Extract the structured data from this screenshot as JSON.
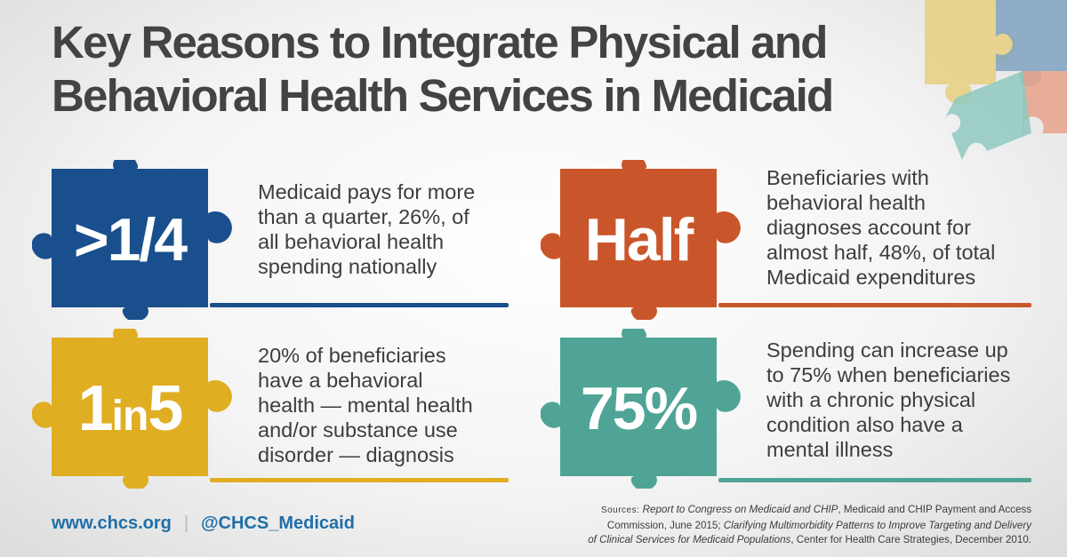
{
  "title": {
    "line1": "Key Reasons to Integrate Physical and",
    "line2": "Behavioral Health Services in Medicaid"
  },
  "colors": {
    "blue": "#1a4f8d",
    "orange": "#c9562a",
    "gold": "#e0ae22",
    "teal": "#4fa496"
  },
  "facts": [
    {
      "stat": ">1/4",
      "color": "#1a4f8d",
      "text": [
        "Medicaid pays for more",
        "than a quarter, 26%, of",
        "all behavioral health",
        "spending nationally"
      ]
    },
    {
      "stat": "Half",
      "color": "#c9562a",
      "text": [
        "Beneficiaries with",
        "behavioral health",
        "diagnoses account for",
        "almost half, 48%, of total",
        "Medicaid expenditures"
      ]
    },
    {
      "stat_pre": "1",
      "stat_mid": "in",
      "stat_post": "5",
      "color": "#e0ae22",
      "text": [
        "20% of beneficiaries",
        "have a behavioral",
        "health — mental health",
        "and/or substance use",
        "disorder — diagnosis"
      ]
    },
    {
      "stat": "75%",
      "color": "#4fa496",
      "text": [
        "Spending can increase up",
        "to 75% when beneficiaries",
        "with a chronic physical",
        "condition also have a",
        "mental illness"
      ]
    }
  ],
  "footer": {
    "website": "www.chcs.org",
    "separator": "|",
    "handle": "@CHCS_Medicaid"
  },
  "sources": {
    "label": "Sources:",
    "s1_title": "Report to Congress on Medicaid and CHIP",
    "s1_rest_a": ", Medicaid and CHIP Payment and Access",
    "s1_rest_b": "Commission, June 2015; ",
    "s2_title_a": "Clarifying Multimorbidity Patterns to Improve Targeting and Delivery",
    "s2_title_b": "of Clinical Services for Medicaid Populations",
    "s2_rest": ", Center for Health Care Strategies, December 2010."
  }
}
